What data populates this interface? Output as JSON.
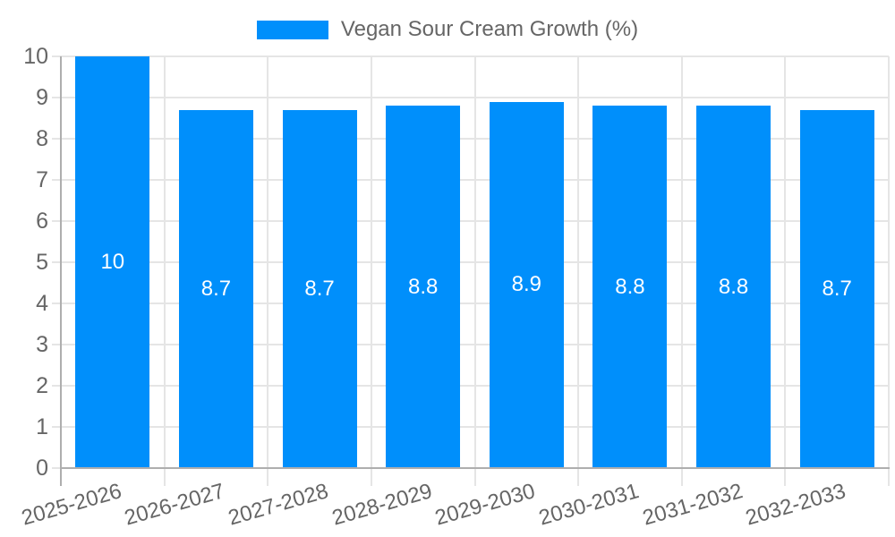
{
  "chart_data": {
    "type": "bar",
    "title": "",
    "legend": {
      "label": "Vegan Sour Cream Growth (%)",
      "position": "top"
    },
    "categories": [
      "2025-2026",
      "2026-2027",
      "2027-2028",
      "2028-2029",
      "2029-2030",
      "2030-2031",
      "2031-2032",
      "2032-2033"
    ],
    "series": [
      {
        "name": "Vegan Sour Cream Growth (%)",
        "values": [
          10,
          8.7,
          8.7,
          8.8,
          8.9,
          8.8,
          8.8,
          8.7
        ]
      }
    ],
    "value_labels": [
      "10",
      "8.7",
      "8.7",
      "8.8",
      "8.9",
      "8.8",
      "8.8",
      "8.7"
    ],
    "ylim": [
      0,
      10
    ],
    "yticks": [
      0,
      1,
      2,
      3,
      4,
      5,
      6,
      7,
      8,
      9,
      10
    ],
    "grid": true,
    "colors": {
      "bar": "#008FFB",
      "grid": "#e5e5e5",
      "axis": "#aeaeae",
      "tick_label": "#666666",
      "data_label": "#ffffff",
      "background": "#ffffff"
    }
  }
}
